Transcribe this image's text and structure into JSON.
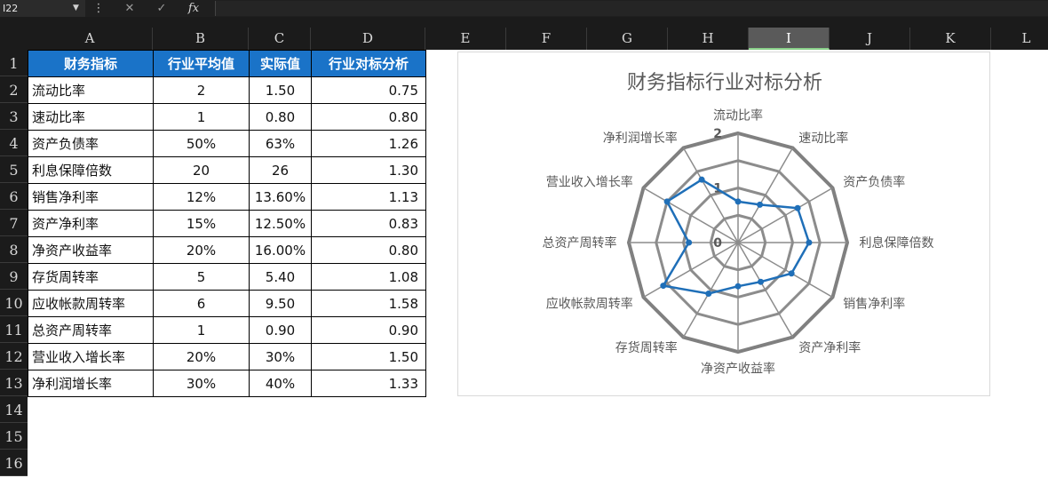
{
  "formula_bar": {
    "name_box": "I22",
    "cancel_icon": "✕",
    "enter_icon": "✓",
    "fx_label": "fx",
    "formula": ""
  },
  "columns": [
    "A",
    "B",
    "C",
    "D",
    "E",
    "F",
    "G",
    "H",
    "I",
    "J",
    "K",
    "L"
  ],
  "selected_column": "I",
  "rows": [
    "1",
    "2",
    "3",
    "4",
    "5",
    "6",
    "7",
    "8",
    "9",
    "10",
    "11",
    "12",
    "13",
    "14",
    "15",
    "16"
  ],
  "table": {
    "headers": [
      "财务指标",
      "行业平均值",
      "实际值",
      "行业对标分析"
    ],
    "rows": [
      [
        "流动比率",
        "2",
        "1.50",
        "0.75"
      ],
      [
        "速动比率",
        "1",
        "0.80",
        "0.80"
      ],
      [
        "资产负债率",
        "50%",
        "63%",
        "1.26"
      ],
      [
        "利息保障倍数",
        "20",
        "26",
        "1.30"
      ],
      [
        "销售净利率",
        "12%",
        "13.60%",
        "1.13"
      ],
      [
        "资产净利率",
        "15%",
        "12.50%",
        "0.83"
      ],
      [
        "净资产收益率",
        "20%",
        "16.00%",
        "0.80"
      ],
      [
        "存货周转率",
        "5",
        "5.40",
        "1.08"
      ],
      [
        "应收帐款周转率",
        "6",
        "9.50",
        "1.58"
      ],
      [
        "总资产周转率",
        "1",
        "0.90",
        "0.90"
      ],
      [
        "营业收入增长率",
        "20%",
        "30%",
        "1.50"
      ],
      [
        "净利润增长率",
        "30%",
        "40%",
        "1.33"
      ]
    ]
  },
  "chart_data": {
    "type": "radar",
    "title": "财务指标行业对标分析",
    "categories": [
      "流动比率",
      "速动比率",
      "资产负债率",
      "利息保障倍数",
      "销售净利率",
      "资产净利率",
      "净资产收益率",
      "存货周转率",
      "应收帐款周转率",
      "总资产周转率",
      "营业收入增长率",
      "净利润增长率"
    ],
    "series": [
      {
        "values": [
          0.75,
          0.8,
          1.26,
          1.3,
          1.13,
          0.83,
          0.8,
          1.08,
          1.58,
          0.9,
          1.5,
          1.33
        ],
        "color": "#1f6fb8"
      }
    ],
    "r_ticks": [
      "0",
      "1",
      "2"
    ],
    "rlim": [
      0,
      2
    ],
    "grid": true,
    "outer_ring_color": "#808080"
  }
}
